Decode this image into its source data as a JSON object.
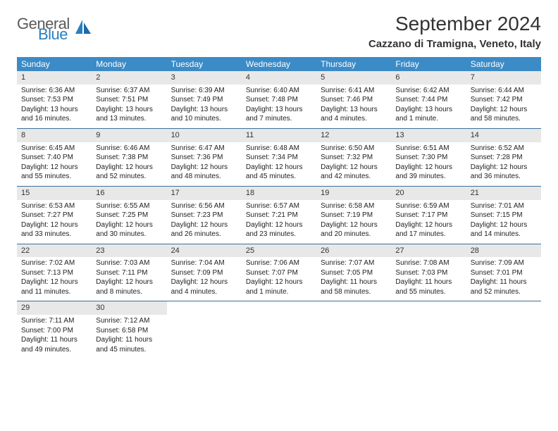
{
  "brand": {
    "word1": "General",
    "word2": "Blue"
  },
  "title": "September 2024",
  "location": "Cazzano di Tramigna, Veneto, Italy",
  "colors": {
    "header_bg": "#3b8bc7",
    "header_text": "#ffffff",
    "daynum_bg": "#e8e8e8",
    "divider": "#3b6f9c",
    "logo_gray": "#5a5a5a",
    "logo_blue": "#2a7fbf",
    "text": "#333333",
    "page_bg": "#ffffff"
  },
  "typography": {
    "title_fontsize": 28,
    "location_fontsize": 15,
    "dow_fontsize": 12,
    "daynum_fontsize": 11,
    "body_fontsize": 10,
    "logo_fontsize": 22
  },
  "daysOfWeek": [
    "Sunday",
    "Monday",
    "Tuesday",
    "Wednesday",
    "Thursday",
    "Friday",
    "Saturday"
  ],
  "weeks": [
    [
      {
        "n": "1",
        "sr": "Sunrise: 6:36 AM",
        "ss": "Sunset: 7:53 PM",
        "dl1": "Daylight: 13 hours",
        "dl2": "and 16 minutes."
      },
      {
        "n": "2",
        "sr": "Sunrise: 6:37 AM",
        "ss": "Sunset: 7:51 PM",
        "dl1": "Daylight: 13 hours",
        "dl2": "and 13 minutes."
      },
      {
        "n": "3",
        "sr": "Sunrise: 6:39 AM",
        "ss": "Sunset: 7:49 PM",
        "dl1": "Daylight: 13 hours",
        "dl2": "and 10 minutes."
      },
      {
        "n": "4",
        "sr": "Sunrise: 6:40 AM",
        "ss": "Sunset: 7:48 PM",
        "dl1": "Daylight: 13 hours",
        "dl2": "and 7 minutes."
      },
      {
        "n": "5",
        "sr": "Sunrise: 6:41 AM",
        "ss": "Sunset: 7:46 PM",
        "dl1": "Daylight: 13 hours",
        "dl2": "and 4 minutes."
      },
      {
        "n": "6",
        "sr": "Sunrise: 6:42 AM",
        "ss": "Sunset: 7:44 PM",
        "dl1": "Daylight: 13 hours",
        "dl2": "and 1 minute."
      },
      {
        "n": "7",
        "sr": "Sunrise: 6:44 AM",
        "ss": "Sunset: 7:42 PM",
        "dl1": "Daylight: 12 hours",
        "dl2": "and 58 minutes."
      }
    ],
    [
      {
        "n": "8",
        "sr": "Sunrise: 6:45 AM",
        "ss": "Sunset: 7:40 PM",
        "dl1": "Daylight: 12 hours",
        "dl2": "and 55 minutes."
      },
      {
        "n": "9",
        "sr": "Sunrise: 6:46 AM",
        "ss": "Sunset: 7:38 PM",
        "dl1": "Daylight: 12 hours",
        "dl2": "and 52 minutes."
      },
      {
        "n": "10",
        "sr": "Sunrise: 6:47 AM",
        "ss": "Sunset: 7:36 PM",
        "dl1": "Daylight: 12 hours",
        "dl2": "and 48 minutes."
      },
      {
        "n": "11",
        "sr": "Sunrise: 6:48 AM",
        "ss": "Sunset: 7:34 PM",
        "dl1": "Daylight: 12 hours",
        "dl2": "and 45 minutes."
      },
      {
        "n": "12",
        "sr": "Sunrise: 6:50 AM",
        "ss": "Sunset: 7:32 PM",
        "dl1": "Daylight: 12 hours",
        "dl2": "and 42 minutes."
      },
      {
        "n": "13",
        "sr": "Sunrise: 6:51 AM",
        "ss": "Sunset: 7:30 PM",
        "dl1": "Daylight: 12 hours",
        "dl2": "and 39 minutes."
      },
      {
        "n": "14",
        "sr": "Sunrise: 6:52 AM",
        "ss": "Sunset: 7:28 PM",
        "dl1": "Daylight: 12 hours",
        "dl2": "and 36 minutes."
      }
    ],
    [
      {
        "n": "15",
        "sr": "Sunrise: 6:53 AM",
        "ss": "Sunset: 7:27 PM",
        "dl1": "Daylight: 12 hours",
        "dl2": "and 33 minutes."
      },
      {
        "n": "16",
        "sr": "Sunrise: 6:55 AM",
        "ss": "Sunset: 7:25 PM",
        "dl1": "Daylight: 12 hours",
        "dl2": "and 30 minutes."
      },
      {
        "n": "17",
        "sr": "Sunrise: 6:56 AM",
        "ss": "Sunset: 7:23 PM",
        "dl1": "Daylight: 12 hours",
        "dl2": "and 26 minutes."
      },
      {
        "n": "18",
        "sr": "Sunrise: 6:57 AM",
        "ss": "Sunset: 7:21 PM",
        "dl1": "Daylight: 12 hours",
        "dl2": "and 23 minutes."
      },
      {
        "n": "19",
        "sr": "Sunrise: 6:58 AM",
        "ss": "Sunset: 7:19 PM",
        "dl1": "Daylight: 12 hours",
        "dl2": "and 20 minutes."
      },
      {
        "n": "20",
        "sr": "Sunrise: 6:59 AM",
        "ss": "Sunset: 7:17 PM",
        "dl1": "Daylight: 12 hours",
        "dl2": "and 17 minutes."
      },
      {
        "n": "21",
        "sr": "Sunrise: 7:01 AM",
        "ss": "Sunset: 7:15 PM",
        "dl1": "Daylight: 12 hours",
        "dl2": "and 14 minutes."
      }
    ],
    [
      {
        "n": "22",
        "sr": "Sunrise: 7:02 AM",
        "ss": "Sunset: 7:13 PM",
        "dl1": "Daylight: 12 hours",
        "dl2": "and 11 minutes."
      },
      {
        "n": "23",
        "sr": "Sunrise: 7:03 AM",
        "ss": "Sunset: 7:11 PM",
        "dl1": "Daylight: 12 hours",
        "dl2": "and 8 minutes."
      },
      {
        "n": "24",
        "sr": "Sunrise: 7:04 AM",
        "ss": "Sunset: 7:09 PM",
        "dl1": "Daylight: 12 hours",
        "dl2": "and 4 minutes."
      },
      {
        "n": "25",
        "sr": "Sunrise: 7:06 AM",
        "ss": "Sunset: 7:07 PM",
        "dl1": "Daylight: 12 hours",
        "dl2": "and 1 minute."
      },
      {
        "n": "26",
        "sr": "Sunrise: 7:07 AM",
        "ss": "Sunset: 7:05 PM",
        "dl1": "Daylight: 11 hours",
        "dl2": "and 58 minutes."
      },
      {
        "n": "27",
        "sr": "Sunrise: 7:08 AM",
        "ss": "Sunset: 7:03 PM",
        "dl1": "Daylight: 11 hours",
        "dl2": "and 55 minutes."
      },
      {
        "n": "28",
        "sr": "Sunrise: 7:09 AM",
        "ss": "Sunset: 7:01 PM",
        "dl1": "Daylight: 11 hours",
        "dl2": "and 52 minutes."
      }
    ],
    [
      {
        "n": "29",
        "sr": "Sunrise: 7:11 AM",
        "ss": "Sunset: 7:00 PM",
        "dl1": "Daylight: 11 hours",
        "dl2": "and 49 minutes."
      },
      {
        "n": "30",
        "sr": "Sunrise: 7:12 AM",
        "ss": "Sunset: 6:58 PM",
        "dl1": "Daylight: 11 hours",
        "dl2": "and 45 minutes."
      },
      {
        "empty": true
      },
      {
        "empty": true
      },
      {
        "empty": true
      },
      {
        "empty": true
      },
      {
        "empty": true
      }
    ]
  ]
}
